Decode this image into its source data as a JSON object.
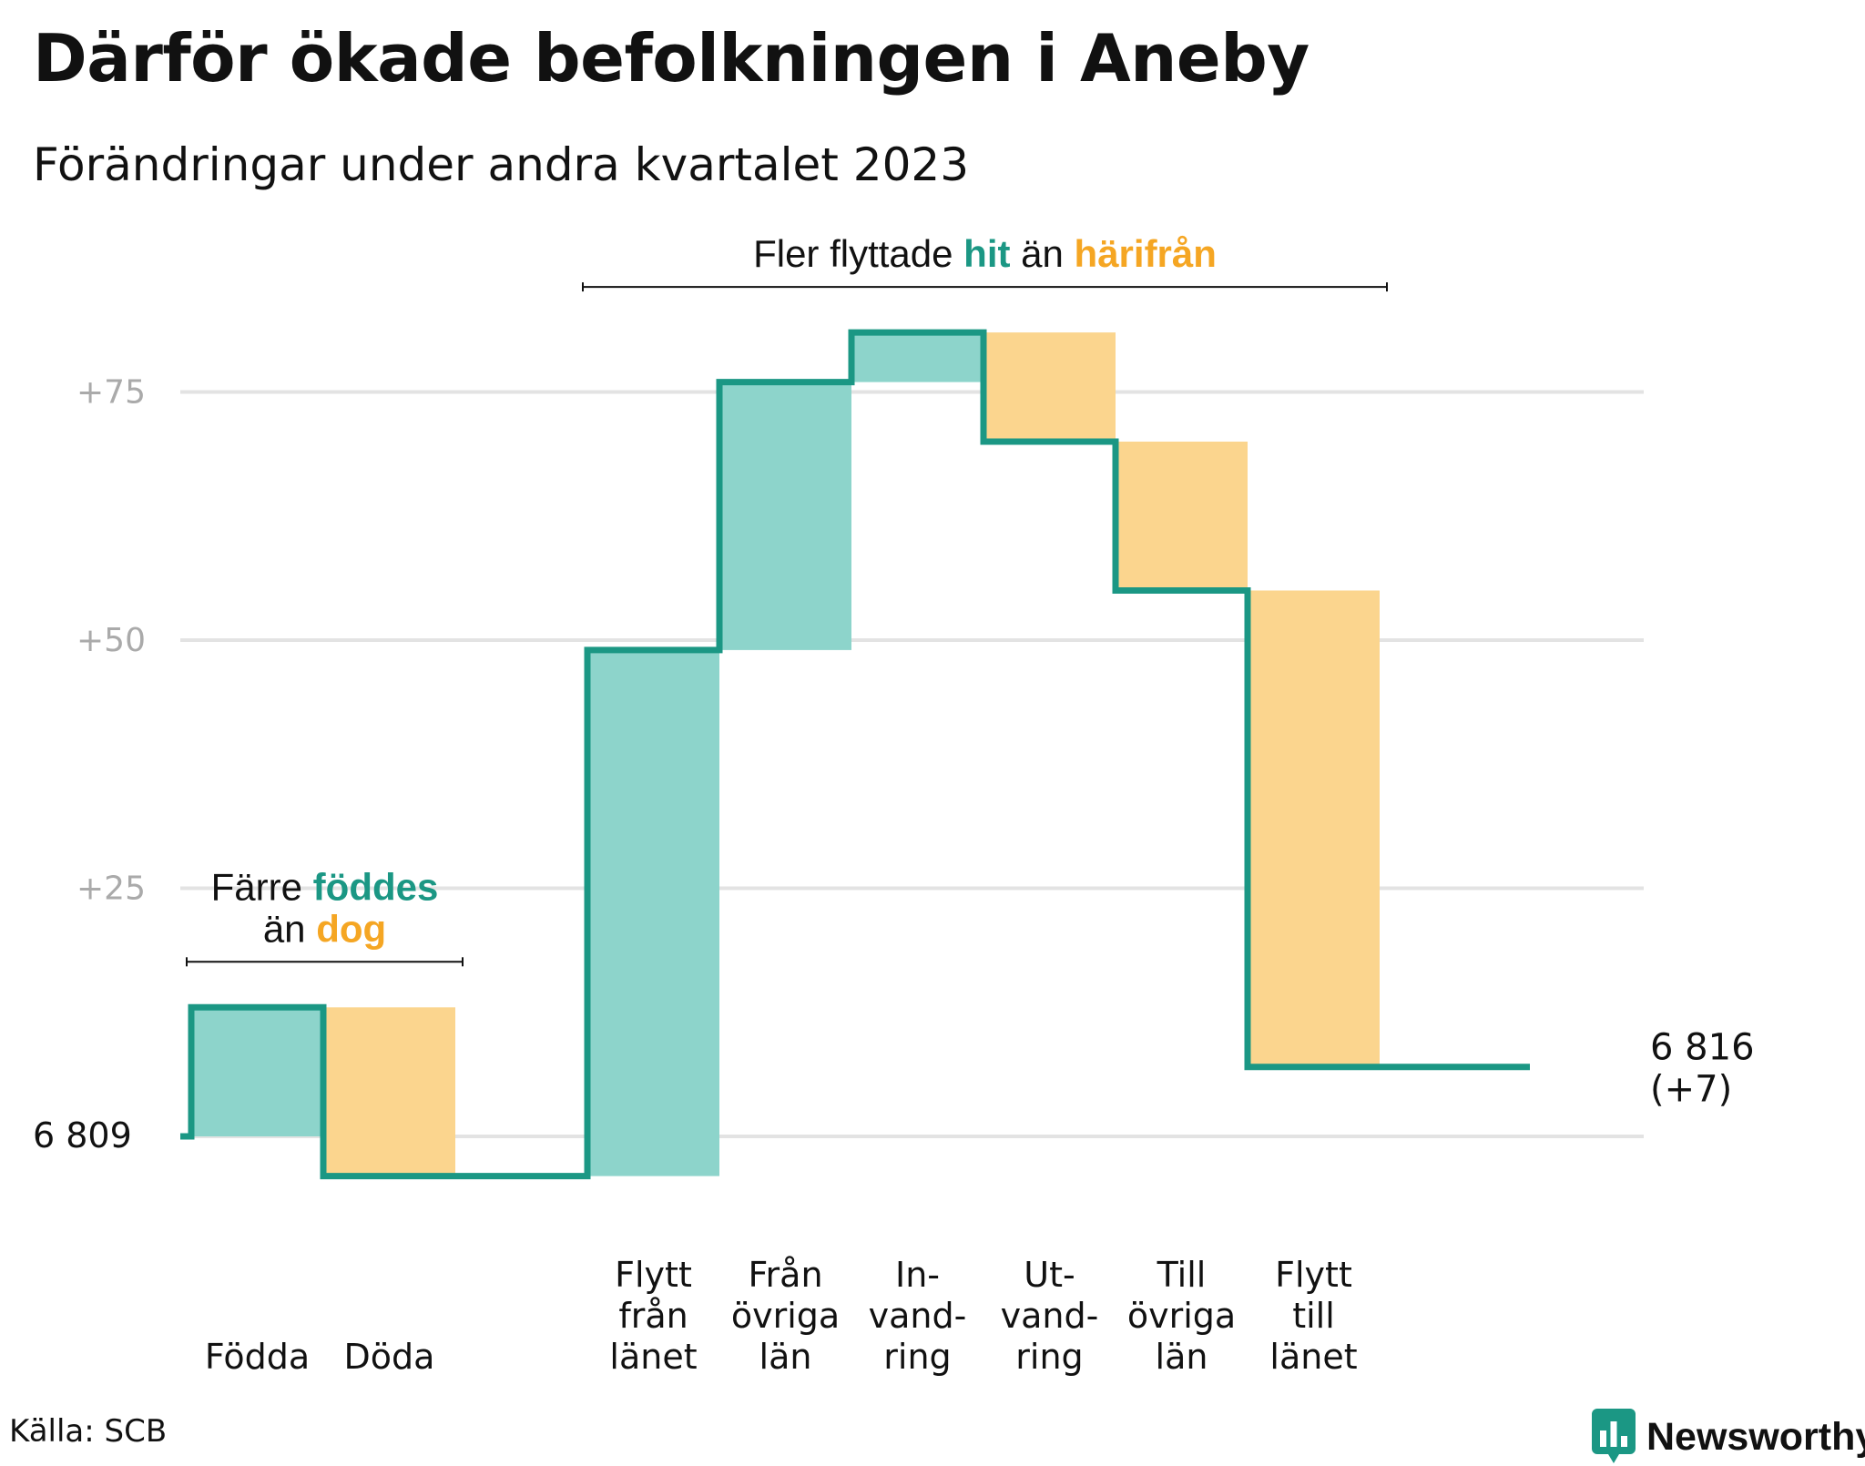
{
  "title": "Därför ökade befolkningen i Aneby",
  "subtitle": "Förändringar under andra kvartalet 2023",
  "source": "Källa: SCB",
  "brand": {
    "name": "Newsworthy",
    "logo_icon": "newsworthy-bar-chart-icon"
  },
  "colors": {
    "line": "#1b9784",
    "increase": "#8dd4cb",
    "decrease": "#fbd58e",
    "accent_orange": "#f5a623",
    "grid": "#e3e3e3",
    "tick": "#aaaaaa"
  },
  "chart_data": {
    "type": "waterfall",
    "title": "Därför ökade befolkningen i Aneby",
    "subtitle": "Förändringar under andra kvartalet 2023",
    "baseline": 6809,
    "baseline_label": "6  809",
    "end_label": "6 816",
    "end_change_label": "(+7)",
    "yticks": [
      {
        "value": 25,
        "label": "+25"
      },
      {
        "value": 50,
        "label": "+50"
      },
      {
        "value": 75,
        "label": "+75"
      }
    ],
    "ylim": [
      -8,
      85
    ],
    "grid": true,
    "steps": [
      {
        "category": [
          "Födda"
        ],
        "change": 13,
        "kind": "increase"
      },
      {
        "category": [
          "Döda"
        ],
        "change": -17,
        "kind": "decrease"
      },
      {
        "category": [
          ""
        ],
        "change": 0,
        "kind": "none"
      },
      {
        "category": [
          "Flytt",
          "från",
          "länet"
        ],
        "change": 53,
        "kind": "increase"
      },
      {
        "category": [
          "Från",
          "övriga",
          "län"
        ],
        "change": 27,
        "kind": "increase"
      },
      {
        "category": [
          "In-",
          "vand-",
          "ring"
        ],
        "change": 5,
        "kind": "increase"
      },
      {
        "category": [
          "Ut-",
          "vand-",
          "ring"
        ],
        "change": -11,
        "kind": "decrease"
      },
      {
        "category": [
          "Till",
          "övriga",
          "län"
        ],
        "change": -15,
        "kind": "decrease"
      },
      {
        "category": [
          "Flytt",
          "till",
          "länet"
        ],
        "change": -48,
        "kind": "decrease"
      },
      {
        "category": [
          ""
        ],
        "change": 0,
        "kind": "none"
      }
    ],
    "annotations": [
      {
        "from_step": 0,
        "to_step": 1,
        "lines": [
          [
            {
              "text": "Färre ",
              "color": "dark"
            },
            {
              "text": "föddes",
              "color": "teal"
            }
          ],
          [
            {
              "text": "än ",
              "color": "dark"
            },
            {
              "text": "dog",
              "color": "orange"
            }
          ]
        ]
      },
      {
        "from_step": 3,
        "to_step": 8,
        "lines": [
          [
            {
              "text": "Fler flyttade ",
              "color": "dark"
            },
            {
              "text": "hit",
              "color": "teal"
            },
            {
              "text": "  än ",
              "color": "dark"
            },
            {
              "text": "härifrån",
              "color": "orange"
            }
          ]
        ]
      }
    ]
  }
}
